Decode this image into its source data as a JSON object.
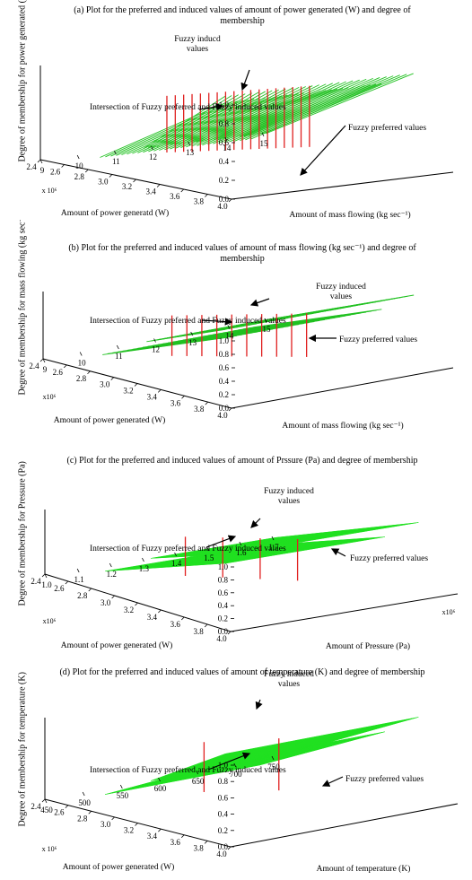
{
  "chart_data": [
    {
      "type": "surface",
      "caption": "(a)  Plot for the preferred and induced values of amount of power generated (W) and degree of membership",
      "x_axis_label": "Amount of power generatd (W)",
      "x_ticks": [
        "4.0",
        "3.8",
        "3.6",
        "3.4",
        "3.2",
        "3.0",
        "2.8",
        "2.6",
        "2.4"
      ],
      "x_multiplier": "x 10⁶",
      "y_axis_label": "Amount of mass flowing (kg sec⁻¹)",
      "y_ticks": [
        "9",
        "10",
        "11",
        "12",
        "13",
        "14",
        "15"
      ],
      "z_axis_label": "Degree of membership for power generated (W)",
      "z_ticks": [
        "0.0",
        "0.2",
        "0.4",
        "0.6",
        "0.8",
        "1.0"
      ],
      "x_range": [
        2.4,
        4.0
      ],
      "y_range": [
        9,
        15
      ],
      "z_range": [
        0,
        1
      ],
      "series": [
        {
          "name": "Fuzzy preferred values",
          "color": "#22c122"
        },
        {
          "name": "Fuzzy inducd values",
          "color": "#e02020"
        }
      ],
      "annotations": [
        "Intersection of Fuzzy preferred and Fuzzy induced values",
        "Fuzzy preferred values",
        "Fuzzy inducd values"
      ]
    },
    {
      "type": "surface",
      "caption": "(b)     Plot for the preferred and induced values of amount of mass flowing (kg sec⁻¹) and degree of membership",
      "x_axis_label": "Amount of power generated (W)",
      "x_ticks": [
        "4.0",
        "3.8",
        "3.6",
        "3.4",
        "3.2",
        "3.0",
        "2.8",
        "2.6",
        "2.4"
      ],
      "x_multiplier": "x10⁶",
      "y_axis_label": "Amount of mass flowing (kg sec⁻¹)",
      "y_ticks": [
        "9",
        "10",
        "11",
        "12",
        "13",
        "14",
        "15"
      ],
      "z_axis_label": "Degree of membership for mass flowing (kg sec⁻¹)",
      "z_ticks": [
        "0.0",
        "0.2",
        "0.4",
        "0.6",
        "0.8",
        "1.0"
      ],
      "x_range": [
        2.4,
        4.0
      ],
      "y_range": [
        9,
        15
      ],
      "z_range": [
        0,
        1
      ],
      "series": [
        {
          "name": "Fuzzy preferred values",
          "color": "#22c122"
        },
        {
          "name": "Fuzzy induced values",
          "color": "#e02020"
        }
      ],
      "annotations": [
        "Intersection of Fuzzy preferred and Fuzzy induced values",
        "Fuzzy preferred values",
        "Fuzzy induced values"
      ]
    },
    {
      "type": "surface",
      "caption": "(c)     Plot for the preferred and induced values of amount of Prssure (Pa) and degree of membership",
      "x_axis_label": "Amount of power generated (W)",
      "x_ticks": [
        "4.0",
        "3.8",
        "3.6",
        "3.4",
        "3.2",
        "3.0",
        "2.8",
        "2.6",
        "2.4"
      ],
      "x_multiplier": "x10⁶",
      "y_axis_label": "Amount of Pressure (Pa)",
      "y_ticks": [
        "1.0",
        "1.1",
        "1.2",
        "1.3",
        "1.4",
        "1.5",
        "1.6",
        "1.7"
      ],
      "y_multiplier": "x10⁶",
      "z_axis_label": "Degree of membership for Pressure (Pa)",
      "z_ticks": [
        "0.0",
        "0.2",
        "0.4",
        "0.6",
        "0.8",
        "1.0"
      ],
      "x_range": [
        2.4,
        4.0
      ],
      "y_range": [
        1.0,
        1.7
      ],
      "z_range": [
        0,
        1
      ],
      "series": [
        {
          "name": "Fuzzy preferred values",
          "color": "#22e022"
        },
        {
          "name": "Fuzzy induced values",
          "color": "#e02020"
        }
      ],
      "annotations": [
        "Intersection of Fuzzy preferred and Fuzzy induced values",
        "Fuzzy preferred values",
        "Fuzzy induced values"
      ]
    },
    {
      "type": "surface",
      "caption": "(d)     Plot for the preferred and induced values of amount of temperature (K) and degree of membership",
      "x_axis_label": "Amount of power generated (W)",
      "x_ticks": [
        "4.0",
        "3.8",
        "3.6",
        "3.4",
        "3.2",
        "3.0",
        "2.8",
        "2.6",
        "2.4"
      ],
      "x_multiplier": "x 10⁶",
      "y_axis_label": "Amount of temperature (K)",
      "y_ticks": [
        "450",
        "500",
        "550",
        "600",
        "650",
        "700",
        "750"
      ],
      "z_axis_label": "Degree of membership for temperature (K)",
      "z_ticks": [
        "0.0",
        "0.2",
        "0.4",
        "0.6",
        "0.8",
        "1.0"
      ],
      "x_range": [
        2.4,
        4.0
      ],
      "y_range": [
        450,
        750
      ],
      "z_range": [
        0,
        1
      ],
      "series": [
        {
          "name": "Fuzzy preferred values",
          "color": "#22e022"
        },
        {
          "name": "Fuzzy induced values",
          "color": "#e02020"
        }
      ],
      "annotations": [
        "Intersection of Fuzzy preferred and Fuzzy induced values",
        "Fuzzy preferred values",
        "Fuzzy induced values"
      ]
    }
  ]
}
